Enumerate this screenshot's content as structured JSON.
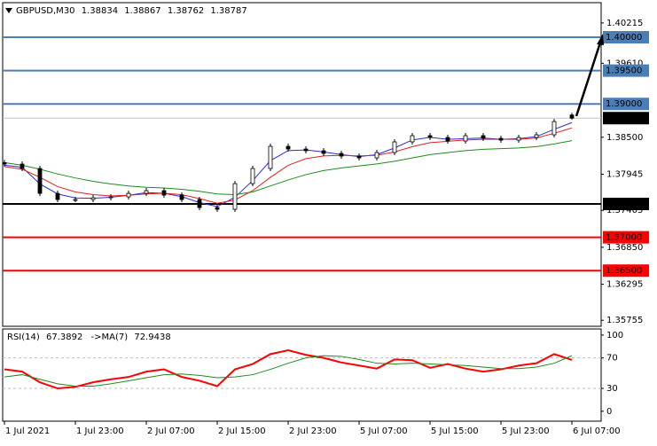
{
  "chart_data": [
    {
      "type": "candlestick",
      "title": "GBPUSD,M30",
      "x": [
        0,
        4,
        8,
        12,
        16,
        20,
        24,
        28,
        32,
        36,
        40,
        44,
        48,
        52,
        56,
        60,
        64,
        68,
        72,
        76,
        80,
        84,
        88,
        92,
        96,
        100,
        104,
        108,
        112,
        116,
        120,
        124,
        128
      ],
      "open": [
        1.3812,
        1.38098,
        1.38032,
        1.37659,
        1.37566,
        1.37566,
        1.37593,
        1.37606,
        1.37659,
        1.37699,
        1.37633,
        1.37566,
        1.37446,
        1.3742,
        1.37805,
        1.38032,
        1.38364,
        1.38324,
        1.38298,
        1.38258,
        1.38218,
        1.38191,
        1.38271,
        1.38431,
        1.38524,
        1.38497,
        1.38444,
        1.38524,
        1.38484,
        1.38457,
        1.38497,
        1.38537,
        1.38834
      ],
      "high": [
        1.3816,
        1.38138,
        1.38072,
        1.37699,
        1.37606,
        1.37633,
        1.37646,
        1.37699,
        1.37739,
        1.37739,
        1.37673,
        1.37606,
        1.37486,
        1.37845,
        1.38072,
        1.38404,
        1.38404,
        1.38364,
        1.38338,
        1.38298,
        1.38258,
        1.38311,
        1.38471,
        1.38564,
        1.38564,
        1.38537,
        1.38564,
        1.38564,
        1.38524,
        1.38537,
        1.38577,
        1.38776,
        1.38867
      ],
      "low": [
        1.38058,
        1.37992,
        1.37619,
        1.37526,
        1.37526,
        1.37526,
        1.37553,
        1.37566,
        1.37619,
        1.37593,
        1.37526,
        1.37406,
        1.3738,
        1.3738,
        1.37765,
        1.37992,
        1.38284,
        1.38258,
        1.38218,
        1.38178,
        1.38151,
        1.38151,
        1.38231,
        1.38391,
        1.38457,
        1.38404,
        1.38404,
        1.38444,
        1.38417,
        1.38417,
        1.38457,
        1.38497,
        1.38762
      ],
      "close": [
        1.38098,
        1.38032,
        1.37659,
        1.37566,
        1.37566,
        1.37593,
        1.37606,
        1.37659,
        1.37699,
        1.37633,
        1.37566,
        1.37446,
        1.3742,
        1.37805,
        1.38032,
        1.38364,
        1.38324,
        1.38298,
        1.38258,
        1.38218,
        1.38191,
        1.38271,
        1.38431,
        1.38524,
        1.38497,
        1.38444,
        1.38524,
        1.38484,
        1.38457,
        1.38497,
        1.38537,
        1.38736,
        1.38787
      ],
      "series": [
        {
          "color": "#2b2bd8",
          "values": [
            1.3808,
            1.3805,
            1.378,
            1.3765,
            1.3759,
            1.37585,
            1.376,
            1.3763,
            1.3767,
            1.3766,
            1.3761,
            1.3752,
            1.3746,
            1.376,
            1.3785,
            1.3815,
            1.383,
            1.3831,
            1.3828,
            1.3824,
            1.3821,
            1.3824,
            1.3834,
            1.3846,
            1.385,
            1.3847,
            1.3848,
            1.3849,
            1.3847,
            1.3848,
            1.3851,
            1.3862,
            1.3872
          ]
        },
        {
          "color": "#e02020",
          "values": [
            1.3806,
            1.3802,
            1.379,
            1.3776,
            1.3768,
            1.3764,
            1.3762,
            1.3763,
            1.3765,
            1.3766,
            1.3764,
            1.3758,
            1.3751,
            1.3756,
            1.377,
            1.379,
            1.3808,
            1.3818,
            1.3822,
            1.3823,
            1.3822,
            1.3823,
            1.3828,
            1.3836,
            1.3842,
            1.3844,
            1.3846,
            1.3847,
            1.3847,
            1.3847,
            1.3849,
            1.3856,
            1.3864
          ]
        },
        {
          "color": "#1f8a1f",
          "values": [
            1.3812,
            1.3808,
            1.3802,
            1.3795,
            1.3789,
            1.3784,
            1.378,
            1.3777,
            1.3775,
            1.3774,
            1.3772,
            1.3769,
            1.3765,
            1.3764,
            1.3768,
            1.3777,
            1.3786,
            1.3794,
            1.38,
            1.3804,
            1.3807,
            1.381,
            1.3814,
            1.3819,
            1.3824,
            1.3827,
            1.383,
            1.3832,
            1.3833,
            1.3834,
            1.3836,
            1.384,
            1.3845
          ]
        }
      ],
      "levels": [
        {
          "value": 1.4,
          "label": "1.40000",
          "color": "#4a7eb8"
        },
        {
          "value": 1.395,
          "label": "1.39500",
          "color": "#4a7eb8"
        },
        {
          "value": 1.39,
          "label": "1.39000",
          "color": "#4a7eb8"
        },
        {
          "value": 1.375,
          "label": "1.37500",
          "color": "#000000"
        },
        {
          "value": 1.37,
          "label": "1.37000",
          "color": "#ff0000"
        },
        {
          "value": 1.365,
          "label": "1.36500",
          "color": "#ff0000"
        }
      ],
      "xlim": [
        -0.4,
        134.6
      ],
      "ylim": [
        1.35665,
        1.40519
      ],
      "yticks": [
        {
          "value": 1.40215,
          "label": "1.40215"
        },
        {
          "value": 1.3961,
          "label": "1.39610"
        },
        {
          "value": 1.385,
          "label": "1.38500"
        },
        {
          "value": 1.37945,
          "label": "1.37945"
        },
        {
          "value": 1.37405,
          "label": "1.37405"
        },
        {
          "value": 1.3685,
          "label": "1.36850"
        },
        {
          "value": 1.36295,
          "label": "1.36295"
        },
        {
          "value": 1.35755,
          "label": "1.35755"
        }
      ],
      "xticks": [
        {
          "value": 0,
          "label": "1 Jul 2021"
        },
        {
          "value": 16,
          "label": "1 Jul 23:00"
        },
        {
          "value": 32,
          "label": "2 Jul 07:00"
        },
        {
          "value": 48,
          "label": "2 Jul 15:00"
        },
        {
          "value": 64,
          "label": "2 Jul 23:00"
        },
        {
          "value": 80,
          "label": "5 Jul 07:00"
        },
        {
          "value": 96,
          "label": "5 Jul 15:00"
        },
        {
          "value": 112,
          "label": "5 Jul 23:00"
        },
        {
          "value": 128,
          "label": "6 Jul 07:00"
        }
      ]
    },
    {
      "type": "line",
      "x": [
        0,
        4,
        8,
        12,
        16,
        20,
        24,
        28,
        32,
        36,
        40,
        44,
        48,
        52,
        56,
        60,
        64,
        68,
        72,
        76,
        80,
        84,
        88,
        92,
        96,
        100,
        104,
        108,
        112,
        116,
        120,
        124,
        128
      ],
      "series": [
        {
          "name": "RSI(14)",
          "color": "#ff0000",
          "values": [
            55,
            52,
            38,
            30,
            32,
            38,
            42,
            45,
            52,
            55,
            45,
            40,
            33,
            55,
            62,
            75,
            80,
            74,
            70,
            64,
            60,
            56,
            68,
            67,
            57,
            62,
            56,
            52,
            55,
            60,
            63,
            75,
            67.3892
          ]
        },
        {
          "name": "->MA(7)",
          "color": "#1f8a1f",
          "values": [
            45,
            48,
            42,
            36,
            33,
            33,
            36,
            40,
            44,
            48,
            49,
            47,
            44,
            45,
            48,
            55,
            63,
            70,
            73,
            72,
            68,
            63,
            62,
            63,
            62,
            61,
            60,
            58,
            56,
            56,
            58,
            63,
            72.9438
          ]
        }
      ],
      "levels": [
        70,
        30
      ],
      "xlim": [
        -0.4,
        134.6
      ],
      "ylim": [
        -13,
        108
      ],
      "yticks": [
        100,
        70,
        30,
        0
      ]
    }
  ]
}
